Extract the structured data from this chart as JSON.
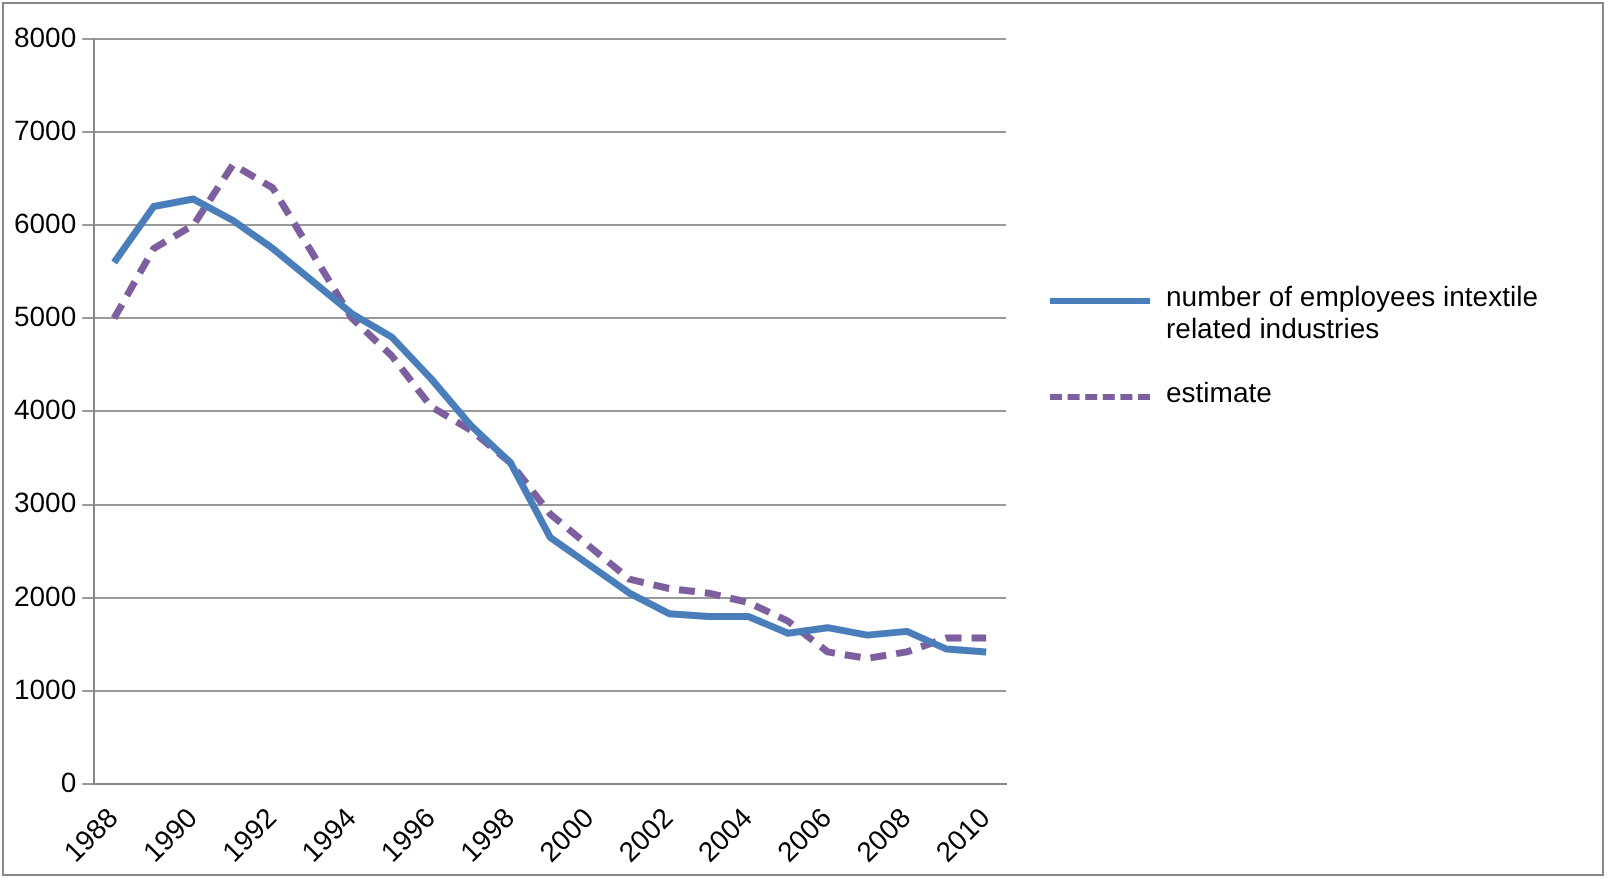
{
  "chart_data": {
    "type": "line",
    "categories": [
      "1988",
      null,
      "1990",
      null,
      "1992",
      null,
      "1994",
      null,
      "1996",
      null,
      "1998",
      null,
      "2000",
      null,
      "2002",
      null,
      "2004",
      null,
      "2006",
      null,
      "2008",
      null,
      "2010"
    ],
    "series": [
      {
        "name": "number of employees intextile related industries",
        "color": "#4a7ebb",
        "line_style": "solid",
        "values": [
          5600,
          6200,
          6280,
          6050,
          5750,
          5400,
          5050,
          4800,
          4350,
          3850,
          3450,
          2650,
          2350,
          2050,
          1830,
          1800,
          1800,
          1620,
          1680,
          1600,
          1640,
          1450,
          1420
        ]
      },
      {
        "name": "estimate",
        "color": "#7d5fa0",
        "line_style": "dashed",
        "values": [
          5000,
          5750,
          6000,
          6650,
          6400,
          5700,
          5000,
          4600,
          4050,
          3800,
          3450,
          2900,
          2550,
          2200,
          2100,
          2050,
          1950,
          1750,
          1420,
          1350,
          1420,
          1570,
          1570
        ]
      }
    ],
    "ylim": [
      0,
      8000
    ],
    "yticks": [
      0,
      1000,
      2000,
      3000,
      4000,
      5000,
      6000,
      7000,
      8000
    ],
    "grid": "y",
    "legend": "right",
    "marker": "none"
  }
}
